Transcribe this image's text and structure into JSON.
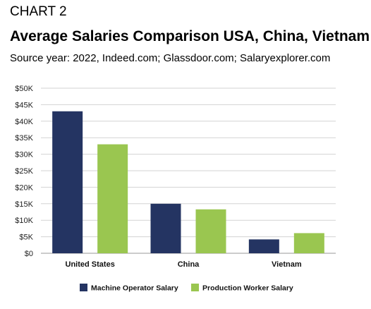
{
  "header": {
    "label": "CHART 2",
    "title": "Average Salaries Comparison USA, China, Vietnam",
    "subtitle": "Source year: 2022, Indeed.com; Glassdoor.com; Salaryexplorer.com"
  },
  "chart_data": {
    "type": "bar",
    "title": "Average Salaries Comparison USA, China, Vietnam",
    "subtitle": "Source year: 2022, Indeed.com; Glassdoor.com; Salaryexplorer.com",
    "categories": [
      "United States",
      "China",
      "Vietnam"
    ],
    "series": [
      {
        "name": "Machine Operator Salary",
        "color": "#243462",
        "values": [
          43000,
          15000,
          4200
        ]
      },
      {
        "name": "Production Worker Salary",
        "color": "#9ac650",
        "values": [
          33000,
          13300,
          6100
        ]
      }
    ],
    "ylim": [
      0,
      50000
    ],
    "yticks": [
      0,
      5000,
      10000,
      15000,
      20000,
      25000,
      30000,
      35000,
      40000,
      45000,
      50000
    ],
    "ytick_labels": [
      "$0",
      "$5K",
      "$10K",
      "$15K",
      "$20K",
      "$25K",
      "$30K",
      "$35K",
      "$40K",
      "$45K",
      "$50K"
    ],
    "xlabel": "",
    "ylabel": "",
    "grid": true,
    "legend": "bottom"
  }
}
